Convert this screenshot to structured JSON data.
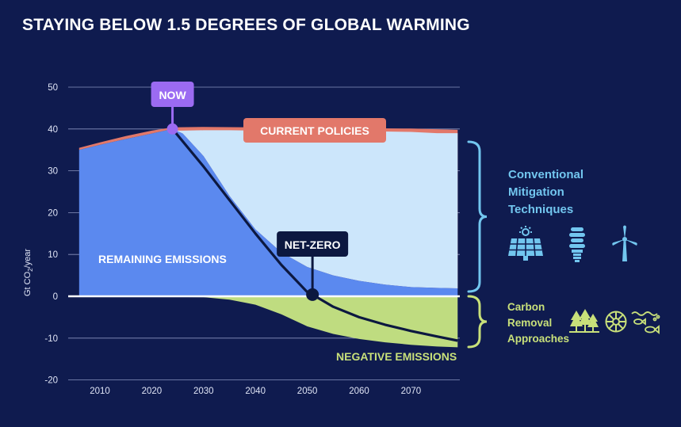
{
  "title": "STAYING BELOW 1.5 DEGREES OF GLOBAL WARMING",
  "labels": {
    "now": "NOW",
    "current_policies": "CURRENT POLICIES",
    "net_zero": "NET-ZERO",
    "remaining_emissions": "REMAINING EMISSIONS",
    "negative_emissions": "NEGATIVE EMISSIONS",
    "conventional": [
      "Conventional",
      "Mitigation",
      "Techniques"
    ],
    "carbon_removal": [
      "Carbon",
      "Removal",
      "Approaches"
    ]
  },
  "icons": {
    "mitigation": [
      "solar-panel-icon",
      "light-bulb-icon",
      "wind-turbine-icon"
    ],
    "removal": [
      "forest-icon",
      "sun-wheel-icon",
      "fish-waves-icon"
    ]
  },
  "colors": {
    "background": "#0f1b4f",
    "remaining_emissions": "#5b89ef",
    "conventional_mitigation": "#cce6fb",
    "current_policies_band": "#e2786a",
    "carbon_removal": "#bfdc80",
    "pathway_line": "#0c1840",
    "now_marker": "#9b6bf2",
    "conventional_text": "#72c6ef",
    "carbon_text": "#c8e07a"
  },
  "chart_data": {
    "type": "area",
    "title": "STAYING BELOW 1.5 DEGREES OF GLOBAL WARMING",
    "ylabel": "Gt CO2/year",
    "ylabel_parts": {
      "main": "Gt CO",
      "sub": "2",
      "tail": "/year"
    },
    "xlabel": "",
    "xlim": [
      2003,
      2080
    ],
    "ylim": [
      -20,
      50
    ],
    "x_ticks": [
      2010,
      2020,
      2030,
      2040,
      2050,
      2060,
      2070
    ],
    "y_ticks": [
      50,
      40,
      30,
      20,
      10,
      0,
      -10,
      -20
    ],
    "grid": true,
    "series": [
      {
        "name": "CURRENT POLICIES",
        "x": [
          2006,
          2010,
          2015,
          2020,
          2024,
          2030,
          2040,
          2050,
          2060,
          2070,
          2079
        ],
        "y": [
          35.5,
          36.8,
          38.3,
          39.6,
          40.4,
          40.5,
          40.4,
          40.3,
          40.2,
          40.1,
          39.8
        ]
      },
      {
        "name": "REMAINING EMISSIONS",
        "x": [
          2006,
          2010,
          2015,
          2020,
          2024,
          2026,
          2030,
          2035,
          2040,
          2045,
          2050,
          2055,
          2060,
          2065,
          2070,
          2075,
          2079
        ],
        "y": [
          35,
          36.2,
          37.6,
          38.9,
          40,
          38.9,
          33.5,
          24,
          16,
          10.5,
          7,
          5,
          3.7,
          2.8,
          2.2,
          2,
          1.9
        ]
      },
      {
        "name": "NEGATIVE EMISSIONS",
        "x": [
          2006,
          2030,
          2035,
          2040,
          2045,
          2050,
          2055,
          2060,
          2065,
          2070,
          2075,
          2079
        ],
        "y": [
          0,
          -0.2,
          -0.8,
          -2,
          -4.3,
          -7.2,
          -9,
          -10.2,
          -11,
          -11.6,
          -12,
          -12.2
        ]
      },
      {
        "name": "NET-ZERO",
        "x": [
          2024,
          2030,
          2035,
          2040,
          2045,
          2050,
          2051,
          2055,
          2060,
          2065,
          2070,
          2075,
          2079
        ],
        "y": [
          40,
          31,
          23,
          15,
          7.5,
          1,
          0.4,
          -2.5,
          -5,
          -6.8,
          -8.3,
          -9.6,
          -10.6
        ]
      }
    ],
    "markers": [
      {
        "label": "NOW",
        "x": 2024,
        "y": 40
      },
      {
        "label": "NET-ZERO",
        "x": 2051,
        "y": 0.4
      }
    ]
  }
}
